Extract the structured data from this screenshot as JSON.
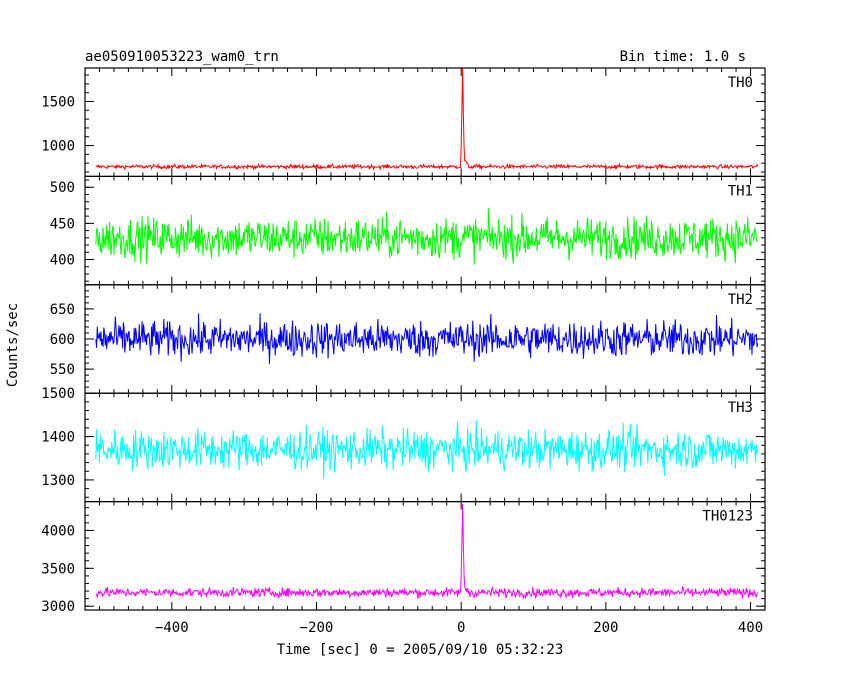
{
  "chart_data": {
    "type": "line",
    "title_left": "ae050910053223_wam0_trn",
    "title_right": "Bin time: 1.0 s",
    "xlabel": "Time [sec] 0 = 2005/09/10 05:32:23",
    "ylabel": "Counts/sec",
    "xlim": [
      -520,
      420
    ],
    "x_range": [
      -505,
      410
    ],
    "x_ticks": [
      -400,
      -200,
      0,
      200,
      400
    ],
    "x_tick_labels": [
      "−400",
      "−200",
      "0",
      "200",
      "400"
    ],
    "grid": false,
    "series": [
      {
        "name": "TH0",
        "color": "#ff0000",
        "ylim": [
          650,
          1880
        ],
        "baseline": 760,
        "noise": 22,
        "peak": {
          "x": 2,
          "y": 1880
        },
        "yticks": [
          1000,
          1500
        ],
        "yminor": 100,
        "ytick_labels": [
          "1000",
          "1500"
        ]
      },
      {
        "name": "TH1",
        "color": "#00ff00",
        "ylim": [
          365,
          515
        ],
        "baseline": 430,
        "noise": 28,
        "yticks": [
          400,
          450,
          500
        ],
        "yminor": 10,
        "ytick_labels": [
          "400",
          "450",
          "500"
        ]
      },
      {
        "name": "TH2",
        "color": "#0000ff",
        "ylim": [
          510,
          690
        ],
        "baseline": 600,
        "noise": 30,
        "yticks": [
          550,
          600,
          650
        ],
        "yminor": 10,
        "ytick_labels": [
          "550",
          "600",
          "650"
        ]
      },
      {
        "name": "TH3",
        "color": "#00ffff",
        "ylim": [
          1250,
          1500
        ],
        "baseline": 1370,
        "noise": 45,
        "yticks": [
          1300,
          1400,
          1500
        ],
        "yminor": 20,
        "ytick_labels": [
          "1300",
          "1400",
          "1500"
        ]
      },
      {
        "name": "TH0123",
        "color": "#ff00ff",
        "ylim": [
          2950,
          4380
        ],
        "baseline": 3180,
        "noise": 60,
        "peak": {
          "x": 2,
          "y": 4350
        },
        "yticks": [
          3000,
          3500,
          4000
        ],
        "yminor": 100,
        "ytick_labels": [
          "3000",
          "3500",
          "4000"
        ]
      }
    ]
  }
}
